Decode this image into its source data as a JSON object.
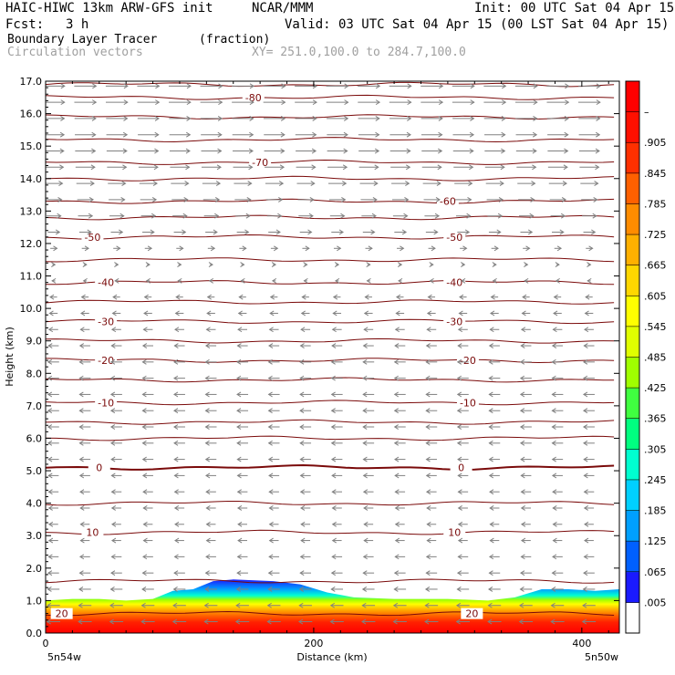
{
  "header": {
    "model": "HAIC-HIWC 13km ARW-GFS init",
    "org": "NCAR/MMM",
    "init": "Init: 00 UTC Sat 04 Apr 15",
    "fcst_label": "Fcst:",
    "fcst_value": "3 h",
    "valid": "Valid: 03 UTC Sat 04 Apr 15 (00 LST Sat 04 Apr 15)",
    "field_name": "Boundary Layer Tracer",
    "field_units": "(fraction)",
    "overlay_name": "Circulation vectors",
    "xy_range": "XY= 251.0,100.0 to 284.7,100.0"
  },
  "chart_data": {
    "type": "heatmap",
    "xlabel": "Distance (km)",
    "ylabel": "Height (km)",
    "xlim": [
      0,
      428
    ],
    "ylim": [
      0,
      17
    ],
    "xticks": [
      0,
      200,
      400
    ],
    "yticks": [
      "0.0",
      "1.0",
      "2.0",
      "3.0",
      "4.0",
      "5.0",
      "6.0",
      "7.0",
      "8.0",
      "9.0",
      "10.0",
      "11.0",
      "12.0",
      "13.0",
      "14.0",
      "15.0",
      "16.0",
      "17.0"
    ],
    "left_endpoint": "5n54w",
    "right_endpoint": "5n50w",
    "colorbar_labels": [
      ".005",
      ".065",
      ".125",
      ".185",
      ".245",
      ".305",
      ".365",
      ".425",
      ".485",
      ".545",
      ".605",
      ".665",
      ".725",
      ".785",
      ".845",
      ".905",
      "–"
    ],
    "colorbar_colors": [
      "#ffffff",
      "#1a1aff",
      "#0060ff",
      "#00a0ff",
      "#00d0ff",
      "#00ffd0",
      "#00ff80",
      "#40ff40",
      "#a0ff00",
      "#e0ff00",
      "#ffff00",
      "#ffd700",
      "#ffb000",
      "#ff8c00",
      "#ff6000",
      "#ff3000",
      "#ff1000",
      "#ff0000"
    ],
    "temperature_contours": [
      {
        "label": "-80",
        "level_km": 16.5,
        "label_positions_km": [
          155
        ]
      },
      {
        "label": "-70",
        "level_km": 14.5,
        "label_positions_km": [
          160
        ]
      },
      {
        "label": "-60",
        "level_km": 13.3,
        "label_positions_km": [
          300
        ]
      },
      {
        "label": "-50",
        "level_km": 12.2,
        "label_positions_km": [
          35,
          305
        ]
      },
      {
        "label": "-40",
        "level_km": 10.8,
        "label_positions_km": [
          45,
          305
        ]
      },
      {
        "label": "-30",
        "level_km": 9.6,
        "label_positions_km": [
          45,
          305
        ]
      },
      {
        "label": "-20",
        "level_km": 8.4,
        "label_positions_km": [
          45,
          315
        ]
      },
      {
        "label": "-10",
        "level_km": 7.1,
        "label_positions_km": [
          45,
          315
        ]
      },
      {
        "label": "0",
        "level_km": 5.1,
        "label_positions_km": [
          40,
          310
        ]
      },
      {
        "label": "10",
        "level_km": 3.1,
        "label_positions_km": [
          35,
          305
        ]
      },
      {
        "label": "20",
        "level_km": 0.6,
        "label_positions_km": [
          12,
          318
        ]
      }
    ],
    "extra_contour_levels_km": [
      16.9,
      15.9,
      15.2,
      14.0,
      12.8,
      11.5,
      10.2,
      9.0,
      7.8,
      6.5,
      6.0,
      4.0,
      1.6
    ],
    "boundary_layer_top_km": [
      [
        0,
        1.0
      ],
      [
        20,
        1.05
      ],
      [
        40,
        1.05
      ],
      [
        60,
        1.0
      ],
      [
        80,
        1.05
      ],
      [
        95,
        1.3
      ],
      [
        110,
        1.35
      ],
      [
        125,
        1.6
      ],
      [
        140,
        1.65
      ],
      [
        170,
        1.6
      ],
      [
        190,
        1.5
      ],
      [
        210,
        1.25
      ],
      [
        230,
        1.1
      ],
      [
        260,
        1.05
      ],
      [
        300,
        1.05
      ],
      [
        330,
        1.0
      ],
      [
        350,
        1.1
      ],
      [
        370,
        1.35
      ],
      [
        390,
        1.35
      ],
      [
        410,
        1.3
      ],
      [
        428,
        1.35
      ]
    ],
    "wind_layers": [
      {
        "level_km": 16.5,
        "direction": "east",
        "speed": 1.0
      },
      {
        "level_km": 14.5,
        "direction": "east",
        "speed": 0.9
      },
      {
        "level_km": 12.5,
        "direction": "east",
        "speed": 0.6
      },
      {
        "level_km": 10.5,
        "direction": "west",
        "speed": 0.3
      },
      {
        "level_km": 8.5,
        "direction": "west",
        "speed": 0.5
      },
      {
        "level_km": 6.0,
        "direction": "west",
        "speed": 0.5
      },
      {
        "level_km": 3.0,
        "direction": "west",
        "speed": 0.4
      },
      {
        "level_km": 0.5,
        "direction": "west",
        "speed": 0.6
      }
    ]
  }
}
